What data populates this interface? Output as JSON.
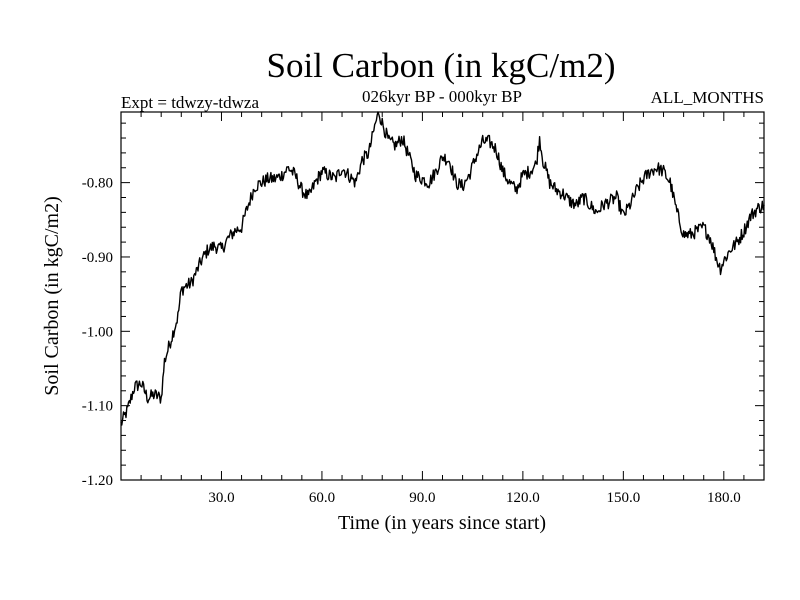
{
  "chart_data": {
    "type": "line",
    "title": "Soil Carbon (in kgC/m2)",
    "subtitle": "026kyr BP - 000kyr BP",
    "left_annotation": "Expt = tdwzy-tdwza",
    "right_annotation": "ALL_MONTHS",
    "xlabel": "Time (in years since start)",
    "ylabel": "Soil Carbon (in kgC/m2)",
    "xlim": [
      0,
      192
    ],
    "ylim": [
      -1.2,
      -0.705
    ],
    "x_ticks": [
      30,
      60,
      90,
      120,
      150,
      180
    ],
    "x_tick_labels": [
      "30.0",
      "60.0",
      "90.0",
      "120.0",
      "150.0",
      "180.0"
    ],
    "y_ticks": [
      -1.2,
      -1.1,
      -1.0,
      -0.9,
      -0.8
    ],
    "y_tick_labels": [
      "-1.20",
      "-1.10",
      "-1.00",
      "-0.90",
      "-0.80"
    ],
    "grid": false,
    "series": [
      {
        "name": "Soil Carbon",
        "x": [
          0,
          2,
          4,
          6,
          8,
          10,
          12,
          13,
          15,
          17,
          18,
          19,
          21,
          22,
          24,
          26,
          28,
          30,
          32,
          34,
          36,
          38,
          40,
          42,
          44,
          46,
          48,
          50,
          52,
          54,
          56,
          58,
          60,
          62,
          64,
          66,
          68,
          70,
          72,
          74,
          76,
          77,
          78,
          80,
          82,
          84,
          86,
          88,
          90,
          92,
          94,
          96,
          98,
          100,
          102,
          104,
          106,
          108,
          110,
          112,
          114,
          116,
          118,
          120,
          122,
          124,
          125,
          126,
          128,
          130,
          132,
          134,
          136,
          138,
          140,
          142,
          144,
          146,
          148,
          150,
          152,
          154,
          156,
          158,
          160,
          162,
          164,
          166,
          168,
          170,
          172,
          174,
          176,
          178,
          179,
          180,
          182,
          184,
          186,
          188,
          190,
          192
        ],
        "y": [
          -1.125,
          -1.105,
          -1.075,
          -1.07,
          -1.09,
          -1.085,
          -1.09,
          -1.04,
          -1.01,
          -0.98,
          -0.945,
          -0.94,
          -0.935,
          -0.925,
          -0.905,
          -0.89,
          -0.885,
          -0.89,
          -0.875,
          -0.865,
          -0.86,
          -0.83,
          -0.805,
          -0.8,
          -0.795,
          -0.795,
          -0.79,
          -0.78,
          -0.79,
          -0.81,
          -0.82,
          -0.8,
          -0.785,
          -0.79,
          -0.795,
          -0.78,
          -0.79,
          -0.8,
          -0.77,
          -0.76,
          -0.72,
          -0.705,
          -0.72,
          -0.745,
          -0.75,
          -0.74,
          -0.765,
          -0.79,
          -0.795,
          -0.8,
          -0.785,
          -0.765,
          -0.77,
          -0.8,
          -0.805,
          -0.79,
          -0.765,
          -0.745,
          -0.745,
          -0.755,
          -0.785,
          -0.8,
          -0.81,
          -0.79,
          -0.785,
          -0.775,
          -0.74,
          -0.77,
          -0.8,
          -0.81,
          -0.815,
          -0.825,
          -0.83,
          -0.82,
          -0.83,
          -0.84,
          -0.83,
          -0.825,
          -0.82,
          -0.845,
          -0.83,
          -0.81,
          -0.795,
          -0.785,
          -0.78,
          -0.785,
          -0.8,
          -0.84,
          -0.87,
          -0.87,
          -0.865,
          -0.86,
          -0.875,
          -0.905,
          -0.915,
          -0.905,
          -0.89,
          -0.88,
          -0.865,
          -0.845,
          -0.835,
          -0.83
        ]
      }
    ]
  }
}
